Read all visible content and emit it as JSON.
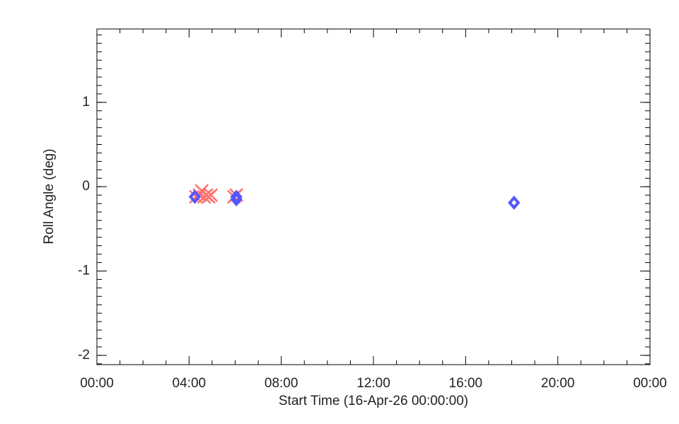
{
  "chart_data": {
    "type": "scatter",
    "xlabel": "Start Time (16-Apr-26 00:00:00)",
    "ylabel": "Roll Angle (deg)",
    "xlim": [
      0,
      24
    ],
    "xticks": [
      {
        "value": 0,
        "label": "00:00"
      },
      {
        "value": 4,
        "label": "04:00"
      },
      {
        "value": 8,
        "label": "08:00"
      },
      {
        "value": 12,
        "label": "12:00"
      },
      {
        "value": 16,
        "label": "16:00"
      },
      {
        "value": 20,
        "label": "20:00"
      },
      {
        "value": 24,
        "label": "00:00"
      }
    ],
    "ylim": [
      -2.11,
      1.87
    ],
    "yticks": [
      -2,
      -1,
      0,
      1
    ],
    "grid": false,
    "series": [
      {
        "color": "#ff7070",
        "marker": "x",
        "x": [
          4.3,
          4.45,
          4.55,
          4.65,
          4.75,
          4.85,
          4.95,
          5.95,
          6.05
        ],
        "values": [
          -0.12,
          -0.1,
          -0.05,
          -0.12,
          -0.1,
          -0.12,
          -0.1,
          -0.12,
          -0.1
        ]
      },
      {
        "color": "#5555ff",
        "marker": "diamond",
        "x": [
          4.25,
          6.05,
          6.05,
          18.1
        ],
        "values": [
          -0.12,
          -0.12,
          -0.15,
          -0.19
        ]
      }
    ]
  }
}
